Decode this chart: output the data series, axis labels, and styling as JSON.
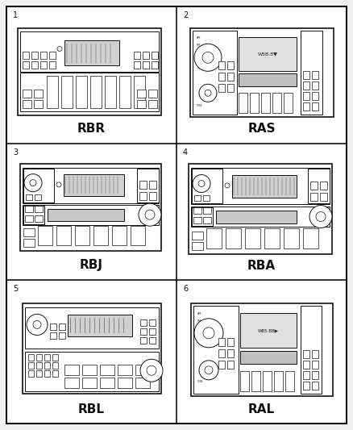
{
  "title": "",
  "background_color": "#f0f0f0",
  "outer_border_color": "#111111",
  "grid_line_color": "#111111",
  "radio_outline_color": "#111111",
  "label_color": "#111111",
  "units": [
    {
      "num": "1",
      "label": "RBR",
      "col": 0,
      "row": 2
    },
    {
      "num": "2",
      "label": "RAS",
      "col": 1,
      "row": 2
    },
    {
      "num": "3",
      "label": "RBJ",
      "col": 0,
      "row": 1
    },
    {
      "num": "4",
      "label": "RBA",
      "col": 1,
      "row": 1
    },
    {
      "num": "5",
      "label": "RBL",
      "col": 0,
      "row": 0
    },
    {
      "num": "6",
      "label": "RAL",
      "col": 1,
      "row": 0
    }
  ],
  "fig_width": 4.38,
  "fig_height": 5.33,
  "dpi": 100
}
